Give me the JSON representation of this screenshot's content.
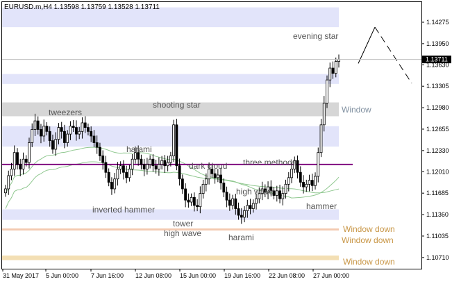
{
  "chart_data": {
    "type": "candlestick",
    "symbol_title": "EURUSD.m,H4  1.13598 1.13759 1.13528 1.13711",
    "current_price": "1.13711",
    "ylim": [
      1.1054,
      1.1458
    ],
    "y_ticks": [
      "1.14275",
      "1.13950",
      "1.13630",
      "1.13305",
      "1.12980",
      "1.12655",
      "1.12330",
      "1.12010",
      "1.11685",
      "1.11360",
      "1.11035",
      "1.10710"
    ],
    "x_ticks": [
      "31 May 2017",
      "5 Jun 00:00",
      "7 Jun 16:00",
      "12 Jun 08:00",
      "15 Jun 00:00",
      "19 Jun 16:00",
      "22 Jun 08:00",
      "27 Jun 00:00"
    ],
    "zones": [
      {
        "from": 1.142,
        "to": 1.145,
        "color": "#e2e4fa"
      },
      {
        "from": 1.1334,
        "to": 1.1349,
        "color": "#e2e4fa"
      },
      {
        "from": 1.1285,
        "to": 1.1306,
        "color": "#d6d6d6"
      },
      {
        "from": 1.1239,
        "to": 1.127,
        "color": "#e2e4fa"
      },
      {
        "from": 1.1128,
        "to": 1.1144,
        "color": "#e2e4fa"
      },
      {
        "from": 1.1112,
        "to": 1.1115,
        "color": "#f3c9b0"
      },
      {
        "from": 1.1067,
        "to": 1.1074,
        "color": "#f3dfb4"
      }
    ],
    "resistance_level": 1.1212,
    "labels": {
      "evening_star": "evening star",
      "tweezers": "tweezers",
      "shooting_star": "shooting star",
      "window": "Window",
      "harami_1": "harami",
      "dark_cloud": "dark cloud",
      "three_methods": "three methods",
      "high_wave_1": "high wave",
      "inverted_hammer": "inverted hammer",
      "hammer": "hammer",
      "tower": "tower",
      "high_wave_2": "high wave",
      "harami_2": "harami",
      "window_down_1": "Window down",
      "window_down_2": "Window down",
      "window_down_3": "Window down"
    },
    "colors": {
      "candle": "#000000",
      "resistance": "#800080",
      "ma_line": "#90c890",
      "zone_text": "#c89646",
      "window_text": "#8090a0",
      "label_text": "#555555"
    },
    "closes": [
      1.1175,
      1.1195,
      1.1205,
      1.123,
      1.1212,
      1.1205,
      1.122,
      1.1215,
      1.1245,
      1.1265,
      1.1278,
      1.1265,
      1.1255,
      1.127,
      1.1262,
      1.1248,
      1.1235,
      1.125,
      1.1268,
      1.1262,
      1.1245,
      1.1258,
      1.127,
      1.1268,
      1.1258,
      1.1262,
      1.1275,
      1.1268,
      1.1262,
      1.1255,
      1.1245,
      1.1238,
      1.1225,
      1.1215,
      1.12,
      1.1185,
      1.1175,
      1.119,
      1.1205,
      1.121,
      1.12,
      1.1192,
      1.1205,
      1.122,
      1.123,
      1.122,
      1.1212,
      1.1205,
      1.1212,
      1.122,
      1.121,
      1.1205,
      1.1212,
      1.1218,
      1.121,
      1.1215,
      1.1225,
      1.1272,
      1.121,
      1.119,
      1.1175,
      1.1158,
      1.1155,
      1.1162,
      1.115,
      1.1148,
      1.1168,
      1.1182,
      1.119,
      1.1205,
      1.1198,
      1.1192,
      1.1196,
      1.1184,
      1.117,
      1.1158,
      1.115,
      1.116,
      1.1145,
      1.1135,
      1.1132,
      1.1142,
      1.115,
      1.1145,
      1.1153,
      1.116,
      1.1168,
      1.1175,
      1.117,
      1.1178,
      1.1172,
      1.1165,
      1.1172,
      1.116,
      1.1168,
      1.1182,
      1.1192,
      1.1205,
      1.1218,
      1.12,
      1.1185,
      1.1178,
      1.1182,
      1.1188,
      1.118,
      1.1194,
      1.123,
      1.1272,
      1.1305,
      1.134,
      1.1358,
      1.135,
      1.1368,
      1.1371
    ],
    "arrow_path": [
      [
        0,
        1.1365
      ],
      [
        1,
        1.142
      ],
      [
        2,
        1.1335
      ]
    ]
  }
}
